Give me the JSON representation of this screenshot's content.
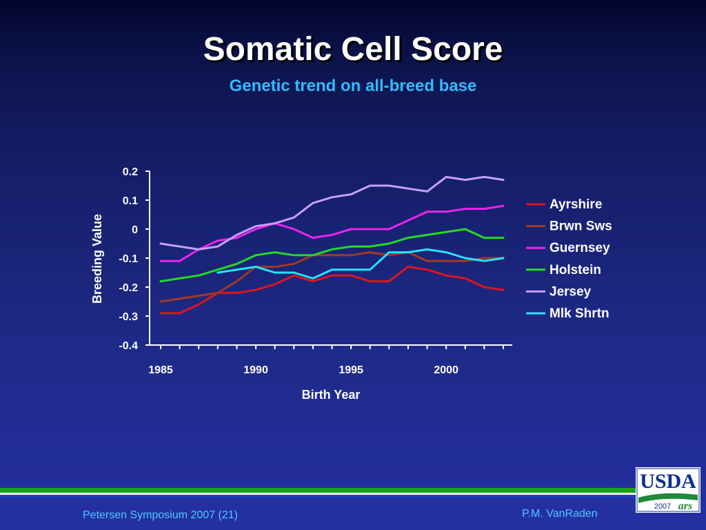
{
  "slide": {
    "title": "Somatic Cell Score",
    "subtitle": "Genetic trend on all-breed base"
  },
  "footer": {
    "left": "Petersen Symposium 2007 (21)",
    "right": "P.M. VanRaden"
  },
  "logo": {
    "text": "USDA",
    "year": "2007",
    "mark": "ars"
  },
  "colors": {
    "title": "#ffffff",
    "subtitle": "#33bbff",
    "footer_text": "#4fc8ff",
    "green_rule": "#1ca51c",
    "blue_rule": "#1b3fb8",
    "axis": "#ffffff"
  },
  "chart_data": {
    "type": "line",
    "xlabel": "Birth Year",
    "ylabel": "Breeding Value",
    "xlim": [
      1985,
      2003
    ],
    "ylim": [
      -0.4,
      0.2
    ],
    "xticks": [
      1985,
      1990,
      1995,
      2000
    ],
    "yticks": [
      0.2,
      0.1,
      0,
      -0.1,
      -0.2,
      -0.3,
      -0.4
    ],
    "ytick_labels": [
      "0.2",
      "0.1",
      "0",
      "-0.1",
      "-0.2",
      "-0.3",
      "-0.4"
    ],
    "grid": false,
    "legend_position": "right",
    "series": [
      {
        "name": "Ayrshire",
        "color": "#e0141e",
        "x": [
          1985,
          1986,
          1987,
          1988,
          1989,
          1990,
          1991,
          1992,
          1993,
          1994,
          1995,
          1996,
          1997,
          1998,
          1999,
          2000,
          2001,
          2002,
          2003
        ],
        "y": [
          -0.29,
          -0.29,
          -0.26,
          -0.22,
          -0.22,
          -0.21,
          -0.19,
          -0.16,
          -0.18,
          -0.16,
          -0.16,
          -0.18,
          -0.18,
          -0.13,
          -0.14,
          -0.16,
          -0.17,
          -0.2,
          -0.21
        ]
      },
      {
        "name": "Brwn Sws",
        "color": "#a03a22",
        "x": [
          1985,
          1986,
          1987,
          1988,
          1989,
          1990,
          1991,
          1992,
          1993,
          1994,
          1995,
          1996,
          1997,
          1998,
          1999,
          2000,
          2001,
          2002,
          2003
        ],
        "y": [
          -0.25,
          -0.24,
          -0.23,
          -0.22,
          -0.18,
          -0.13,
          -0.13,
          -0.12,
          -0.09,
          -0.09,
          -0.09,
          -0.08,
          -0.09,
          -0.08,
          -0.11,
          -0.11,
          -0.11,
          -0.1,
          -0.1
        ]
      },
      {
        "name": "Guernsey",
        "color": "#ee22ee",
        "x": [
          1985,
          1986,
          1987,
          1988,
          1989,
          1990,
          1991,
          1992,
          1993,
          1994,
          1995,
          1996,
          1997,
          1998,
          1999,
          2000,
          2001,
          2002,
          2003
        ],
        "y": [
          -0.11,
          -0.11,
          -0.07,
          -0.04,
          -0.03,
          0.0,
          0.02,
          0.0,
          -0.03,
          -0.02,
          0.0,
          0.0,
          0.0,
          0.03,
          0.06,
          0.06,
          0.07,
          0.07,
          0.08
        ]
      },
      {
        "name": "Holstein",
        "color": "#22dd22",
        "x": [
          1985,
          1986,
          1987,
          1988,
          1989,
          1990,
          1991,
          1992,
          1993,
          1994,
          1995,
          1996,
          1997,
          1998,
          1999,
          2000,
          2001,
          2002,
          2003
        ],
        "y": [
          -0.18,
          -0.17,
          -0.16,
          -0.14,
          -0.12,
          -0.09,
          -0.08,
          -0.09,
          -0.09,
          -0.07,
          -0.06,
          -0.06,
          -0.05,
          -0.03,
          -0.02,
          -0.01,
          0.0,
          -0.03,
          -0.03
        ]
      },
      {
        "name": "Jersey",
        "color": "#c9a0ff",
        "x": [
          1985,
          1986,
          1987,
          1988,
          1989,
          1990,
          1991,
          1992,
          1993,
          1994,
          1995,
          1996,
          1997,
          1998,
          1999,
          2000,
          2001,
          2002,
          2003
        ],
        "y": [
          -0.05,
          -0.06,
          -0.07,
          -0.06,
          -0.02,
          0.01,
          0.02,
          0.04,
          0.09,
          0.11,
          0.12,
          0.15,
          0.15,
          0.14,
          0.13,
          0.18,
          0.17,
          0.18,
          0.17
        ]
      },
      {
        "name": "Mlk Shrtn",
        "color": "#22e6ff",
        "x": [
          1988,
          1989,
          1990,
          1991,
          1992,
          1993,
          1994,
          1995,
          1996,
          1997,
          1998,
          1999,
          2000,
          2001,
          2002,
          2003
        ],
        "y": [
          -0.15,
          -0.14,
          -0.13,
          -0.15,
          -0.15,
          -0.17,
          -0.14,
          -0.14,
          -0.14,
          -0.08,
          -0.08,
          -0.07,
          -0.08,
          -0.1,
          -0.11,
          -0.1
        ]
      }
    ]
  }
}
